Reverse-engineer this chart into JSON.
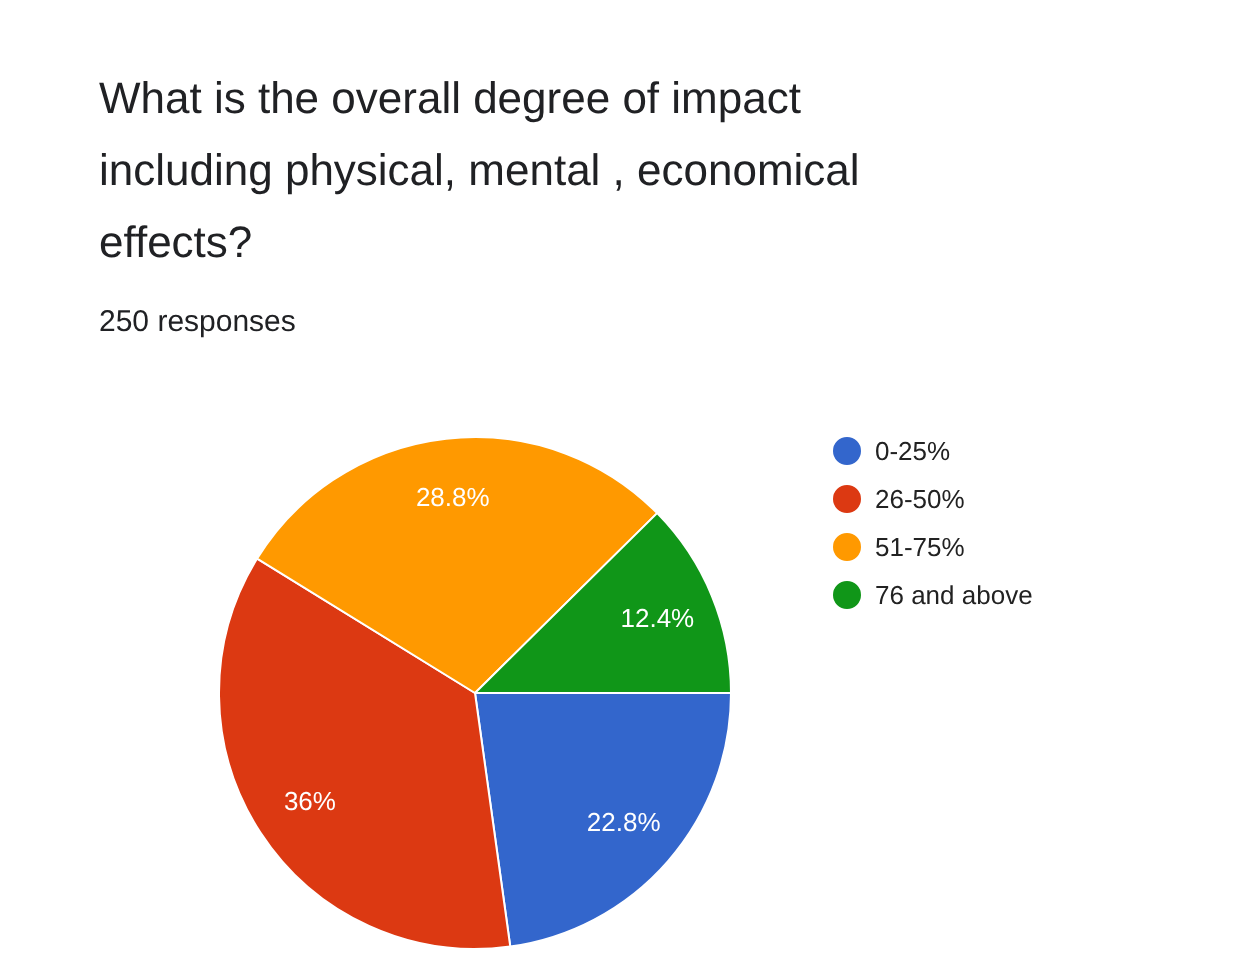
{
  "chart_data": {
    "type": "pie",
    "title": "What is the overall degree of impact including physical, mental , economical effects?",
    "subtitle": "250 responses",
    "categories": [
      "0-25%",
      "26-50%",
      "51-75%",
      "76 and above"
    ],
    "values": [
      22.8,
      36,
      28.8,
      12.4
    ],
    "colors": [
      "#3366cc",
      "#dc3912",
      "#ff9900",
      "#109618"
    ],
    "value_labels": [
      "22.8%",
      "36%",
      "28.8%",
      "12.4%"
    ],
    "legend": "top right"
  }
}
